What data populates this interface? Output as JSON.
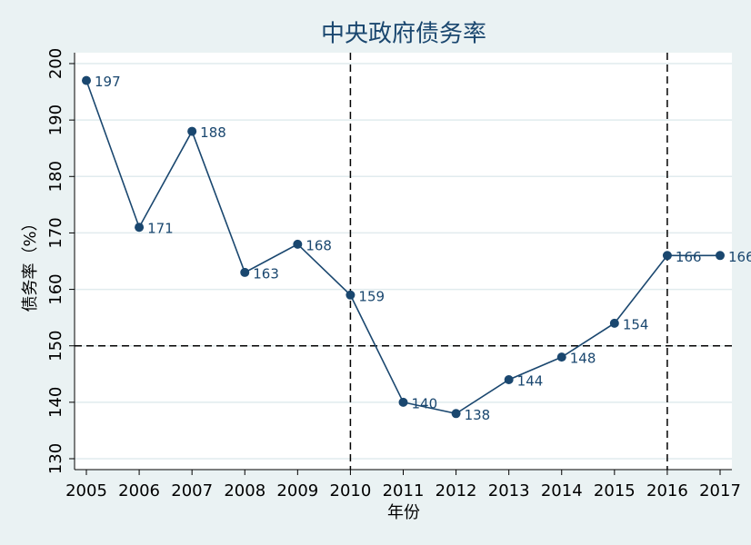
{
  "chart_data": {
    "type": "line",
    "title": "中央政府债务率",
    "x_label": "年份",
    "y_label": "债务率（%）",
    "x": [
      2005,
      2006,
      2007,
      2008,
      2009,
      2010,
      2011,
      2012,
      2013,
      2014,
      2015,
      2016,
      2017
    ],
    "values": [
      197,
      171,
      188,
      163,
      168,
      159,
      140,
      138,
      144,
      148,
      154,
      166,
      166
    ],
    "color": "#1a476f",
    "xlim": [
      2005,
      2017
    ],
    "xticks": [
      2005,
      2006,
      2007,
      2008,
      2009,
      2010,
      2011,
      2012,
      2013,
      2014,
      2015,
      2016,
      2017
    ],
    "ylim": [
      130,
      200
    ],
    "yticks": [
      130,
      140,
      150,
      160,
      170,
      180,
      190,
      200
    ],
    "grid": true,
    "hlines": [
      150
    ],
    "vlines": [
      2010,
      2016
    ]
  }
}
